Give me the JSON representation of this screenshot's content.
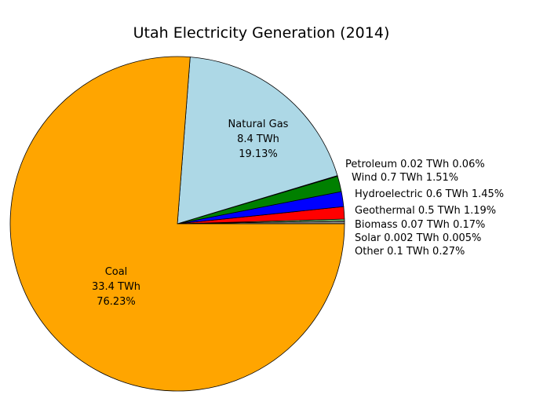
{
  "chart_data": {
    "type": "pie",
    "title": "Utah Electricity Generation (2014)",
    "categories": [
      "Other",
      "Solar",
      "Biomass",
      "Geothermal",
      "Hydroelectric",
      "Wind",
      "Petroleum",
      "Natural Gas",
      "Coal"
    ],
    "values": [
      0.27,
      0.005,
      0.17,
      1.19,
      1.45,
      1.51,
      0.06,
      19.13,
      76.23
    ],
    "value_labels": [
      "0.27%",
      "0.005%",
      "0.17%",
      "1.19%",
      "1.45%",
      "1.51%",
      "0.06%",
      "19.13%",
      "76.23%"
    ],
    "twh": [
      0.1,
      0.002,
      0.07,
      0.5,
      0.6,
      0.7,
      0.02,
      8.4,
      33.4
    ],
    "twh_labels": [
      "0.1 TWh",
      "0.002 TWh",
      "0.07 TWh",
      "0.5 TWh",
      "0.6 TWh",
      "0.7 TWh",
      "0.02 TWh",
      "8.4 TWh",
      "33.4 TWh"
    ],
    "colors": [
      "#808080",
      "#ffff00",
      "#90ee90",
      "#ff0000",
      "#0000ff",
      "#008000",
      "#000000",
      "#add8e6",
      "#ffa500"
    ]
  }
}
